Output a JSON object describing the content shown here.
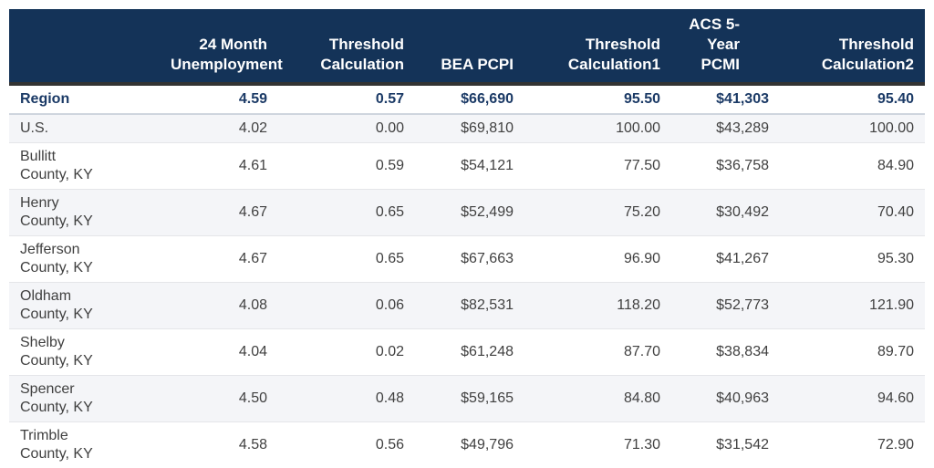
{
  "colors": {
    "header_bg": "#143358",
    "header_text": "#ffffff",
    "header_border": "#333333",
    "summary_text": "#1b3a66",
    "summary_border": "#cfd5de",
    "body_text": "#404040",
    "stripe": "#f4f5f8",
    "row_border": "#e4e5e9"
  },
  "chart_data": {
    "type": "table",
    "columns": [
      {
        "key": "region",
        "label": ""
      },
      {
        "key": "unemployment-24-month",
        "label": "24 Month\nUnemployment"
      },
      {
        "key": "threshold-calculation",
        "label": "Threshold\nCalculation"
      },
      {
        "key": "bea-pcpi",
        "label": "BEA PCPI"
      },
      {
        "key": "threshold-calculation1",
        "label": "Threshold\nCalculation1"
      },
      {
        "key": "acs-5yr-pcmi",
        "label": "ACS 5-\nYear\nPCMI"
      },
      {
        "key": "threshold-calculation2",
        "label": "Threshold\nCalculation2"
      }
    ],
    "rows": [
      {
        "region": "Region",
        "is_summary": true,
        "values": [
          "4.59",
          "0.57",
          "$66,690",
          "95.50",
          "$41,303",
          "95.40"
        ]
      },
      {
        "region": "U.S.",
        "values": [
          "4.02",
          "0.00",
          "$69,810",
          "100.00",
          "$43,289",
          "100.00"
        ]
      },
      {
        "region": "Bullitt\nCounty, KY",
        "values": [
          "4.61",
          "0.59",
          "$54,121",
          "77.50",
          "$36,758",
          "84.90"
        ]
      },
      {
        "region": "Henry\nCounty, KY",
        "values": [
          "4.67",
          "0.65",
          "$52,499",
          "75.20",
          "$30,492",
          "70.40"
        ]
      },
      {
        "region": "Jefferson\nCounty, KY",
        "values": [
          "4.67",
          "0.65",
          "$67,663",
          "96.90",
          "$41,267",
          "95.30"
        ]
      },
      {
        "region": "Oldham\nCounty, KY",
        "values": [
          "4.08",
          "0.06",
          "$82,531",
          "118.20",
          "$52,773",
          "121.90"
        ]
      },
      {
        "region": "Shelby\nCounty, KY",
        "values": [
          "4.04",
          "0.02",
          "$61,248",
          "87.70",
          "$38,834",
          "89.70"
        ]
      },
      {
        "region": "Spencer\nCounty, KY",
        "values": [
          "4.50",
          "0.48",
          "$59,165",
          "84.80",
          "$40,963",
          "94.60"
        ]
      },
      {
        "region": "Trimble\nCounty, KY",
        "values": [
          "4.58",
          "0.56",
          "$49,796",
          "71.30",
          "$31,542",
          "72.90"
        ]
      }
    ]
  }
}
